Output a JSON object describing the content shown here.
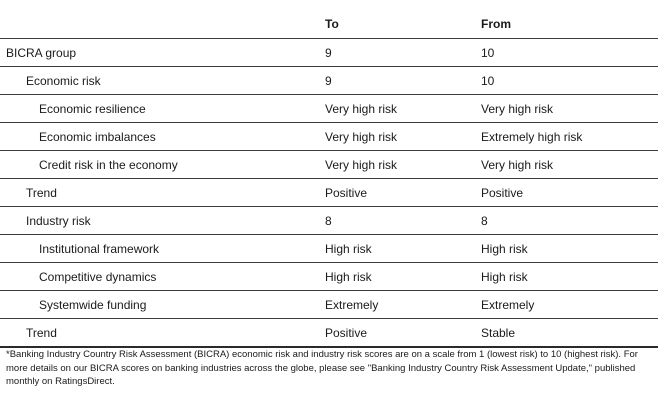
{
  "table": {
    "headers": [
      "",
      "To",
      "From"
    ],
    "rows": [
      {
        "label": "BICRA group",
        "level": 0,
        "to": "9",
        "from": "10"
      },
      {
        "label": "Economic risk",
        "level": 1,
        "to": "9",
        "from": "10"
      },
      {
        "label": "Economic resilience",
        "level": 2,
        "to": "Very high risk",
        "from": "Very high risk"
      },
      {
        "label": "Economic imbalances",
        "level": 2,
        "to": "Very high risk",
        "from": "Extremely high risk"
      },
      {
        "label": "Credit risk in the economy",
        "level": 2,
        "to": "Very high risk",
        "from": "Very high risk"
      },
      {
        "label": "Trend",
        "level": 1,
        "to": "Positive",
        "from": "Positive"
      },
      {
        "label": "Industry risk",
        "level": 1,
        "to": "8",
        "from": "8"
      },
      {
        "label": "Institutional framework",
        "level": 2,
        "to": "High risk",
        "from": "High risk"
      },
      {
        "label": "Competitive dynamics",
        "level": 2,
        "to": "High risk",
        "from": "High risk"
      },
      {
        "label": "Systemwide funding",
        "level": 2,
        "to": "Extremely",
        "from": "Extremely"
      },
      {
        "label": "Trend",
        "level": 1,
        "to": "Positive",
        "from": "Stable"
      }
    ]
  },
  "footnote": "*Banking Industry Country Risk Assessment (BICRA) economic risk and industry risk scores are on a scale from 1 (lowest risk) to 10 (highest risk). For more details on our BICRA scores on banking industries across the globe, please see \"Banking Industry Country Risk Assessment Update,\" published monthly on RatingsDirect."
}
